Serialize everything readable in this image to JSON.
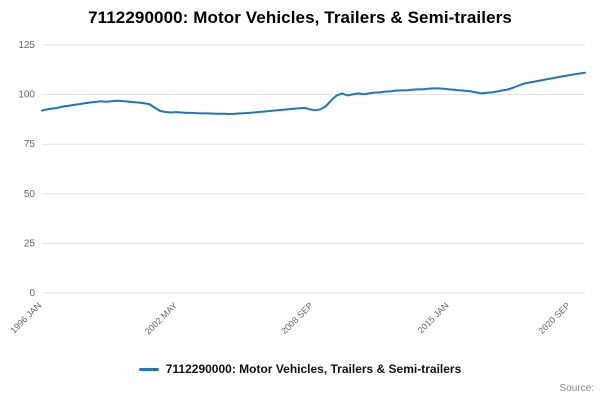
{
  "title": "7112290000: Motor Vehicles, Trailers & Semi-trailers",
  "source_label": "Source:",
  "legend": {
    "label": "7112290000: Motor Vehicles, Trailers & Semi-trailers",
    "line_color": "#1f77b4"
  },
  "colors": {
    "grid": "#e1e1e1",
    "axis_text": "#666666",
    "title_text": "#000000"
  },
  "chart_data": {
    "type": "line",
    "title": "7112290000: Motor Vehicles, Trailers & Semi-trailers",
    "xlabel": "",
    "ylabel": "",
    "ylim": [
      0,
      125
    ],
    "y_ticks": [
      0,
      25,
      50,
      75,
      100,
      125
    ],
    "x_range": [
      0,
      304
    ],
    "x_unit_note": "months since 1996 JAN",
    "x_ticks": [
      {
        "m": 0,
        "label": "1996 JAN"
      },
      {
        "m": 76,
        "label": "2002 MAY"
      },
      {
        "m": 152,
        "label": "2008 SEP"
      },
      {
        "m": 228,
        "label": "2015 JAN"
      },
      {
        "m": 296,
        "label": "2020 SEP"
      }
    ],
    "grid": true,
    "legend_position": "bottom",
    "series": [
      {
        "name": "7112290000: Motor Vehicles, Trailers & Semi-trailers",
        "color": "#1f77b4",
        "points": [
          [
            0,
            92.0
          ],
          [
            3,
            92.6
          ],
          [
            6,
            93.0
          ],
          [
            9,
            93.4
          ],
          [
            12,
            94.0
          ],
          [
            15,
            94.4
          ],
          [
            18,
            94.8
          ],
          [
            21,
            95.2
          ],
          [
            24,
            95.6
          ],
          [
            27,
            96.0
          ],
          [
            30,
            96.3
          ],
          [
            33,
            96.6
          ],
          [
            36,
            96.4
          ],
          [
            39,
            96.7
          ],
          [
            42,
            96.9
          ],
          [
            45,
            96.7
          ],
          [
            48,
            96.5
          ],
          [
            51,
            96.2
          ],
          [
            54,
            96.0
          ],
          [
            57,
            95.6
          ],
          [
            60,
            95.2
          ],
          [
            63,
            93.5
          ],
          [
            66,
            91.8
          ],
          [
            69,
            91.3
          ],
          [
            72,
            91.0
          ],
          [
            75,
            91.2
          ],
          [
            78,
            91.0
          ],
          [
            81,
            90.8
          ],
          [
            84,
            90.8
          ],
          [
            87,
            90.6
          ],
          [
            90,
            90.5
          ],
          [
            93,
            90.5
          ],
          [
            96,
            90.4
          ],
          [
            99,
            90.3
          ],
          [
            102,
            90.3
          ],
          [
            105,
            90.2
          ],
          [
            108,
            90.3
          ],
          [
            111,
            90.5
          ],
          [
            114,
            90.7
          ],
          [
            117,
            90.9
          ],
          [
            120,
            91.1
          ],
          [
            123,
            91.4
          ],
          [
            126,
            91.6
          ],
          [
            129,
            91.9
          ],
          [
            132,
            92.1
          ],
          [
            135,
            92.4
          ],
          [
            138,
            92.6
          ],
          [
            141,
            92.9
          ],
          [
            144,
            93.1
          ],
          [
            147,
            93.3
          ],
          [
            150,
            92.6
          ],
          [
            153,
            92.1
          ],
          [
            156,
            92.6
          ],
          [
            159,
            94.2
          ],
          [
            162,
            97.2
          ],
          [
            165,
            99.6
          ],
          [
            168,
            100.6
          ],
          [
            171,
            99.6
          ],
          [
            174,
            100.1
          ],
          [
            177,
            100.6
          ],
          [
            180,
            100.2
          ],
          [
            183,
            100.6
          ],
          [
            186,
            101.0
          ],
          [
            189,
            101.1
          ],
          [
            192,
            101.5
          ],
          [
            195,
            101.6
          ],
          [
            198,
            102.0
          ],
          [
            201,
            102.1
          ],
          [
            204,
            102.1
          ],
          [
            207,
            102.4
          ],
          [
            210,
            102.6
          ],
          [
            213,
            102.6
          ],
          [
            216,
            102.9
          ],
          [
            219,
            103.1
          ],
          [
            222,
            103.1
          ],
          [
            225,
            102.9
          ],
          [
            228,
            102.6
          ],
          [
            231,
            102.4
          ],
          [
            234,
            102.1
          ],
          [
            237,
            101.9
          ],
          [
            240,
            101.6
          ],
          [
            243,
            101.1
          ],
          [
            246,
            100.6
          ],
          [
            249,
            100.9
          ],
          [
            252,
            101.1
          ],
          [
            255,
            101.6
          ],
          [
            258,
            102.1
          ],
          [
            261,
            102.6
          ],
          [
            264,
            103.6
          ],
          [
            267,
            104.6
          ],
          [
            270,
            105.6
          ],
          [
            273,
            106.1
          ],
          [
            276,
            106.6
          ],
          [
            279,
            107.1
          ],
          [
            282,
            107.6
          ],
          [
            285,
            108.1
          ],
          [
            288,
            108.6
          ],
          [
            291,
            109.1
          ],
          [
            294,
            109.6
          ],
          [
            297,
            110.1
          ],
          [
            300,
            110.5
          ],
          [
            303,
            110.9
          ],
          [
            304,
            111.0
          ]
        ]
      }
    ]
  }
}
